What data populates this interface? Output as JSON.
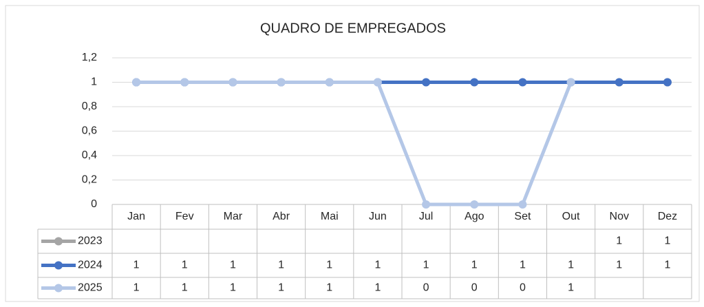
{
  "chart_data": {
    "type": "line",
    "title": "QUADRO DE EMPREGADOS",
    "categories": [
      "Jan",
      "Fev",
      "Mar",
      "Abr",
      "Mai",
      "Jun",
      "Jul",
      "Ago",
      "Set",
      "Out",
      "Nov",
      "Dez"
    ],
    "series": [
      {
        "name": "2023",
        "color": "#a5a5a5",
        "values": [
          null,
          null,
          null,
          null,
          null,
          null,
          null,
          null,
          null,
          null,
          1,
          1
        ]
      },
      {
        "name": "2024",
        "color": "#4472c4",
        "values": [
          1,
          1,
          1,
          1,
          1,
          1,
          1,
          1,
          1,
          1,
          1,
          1
        ]
      },
      {
        "name": "2025",
        "color": "#b4c7e7",
        "values": [
          1,
          1,
          1,
          1,
          1,
          1,
          0,
          0,
          0,
          1,
          null,
          null
        ]
      }
    ],
    "ylim": [
      0,
      1.2
    ],
    "yticks": [
      0,
      {
        "value": 0.2,
        "label": "0,2"
      },
      {
        "value": 0.4,
        "label": "0,4"
      },
      {
        "value": 0.6,
        "label": "0,6"
      },
      {
        "value": 0.8,
        "label": "0,8"
      },
      1,
      {
        "value": 1.2,
        "label": "1,2"
      }
    ],
    "grid": true,
    "data_table": true
  }
}
